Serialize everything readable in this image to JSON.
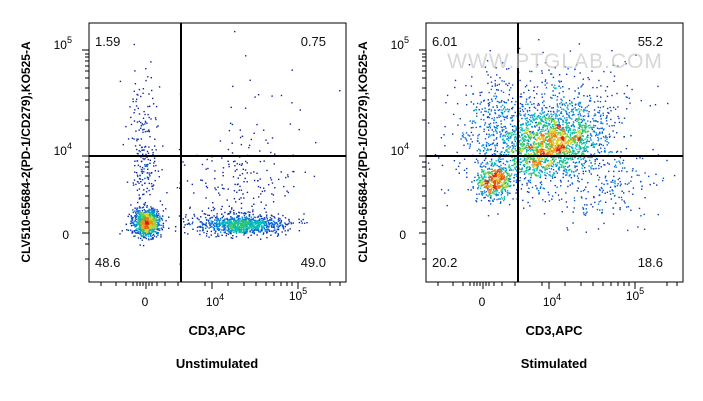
{
  "watermark": "WWW.PTGLAB.COM",
  "chart_data": [
    {
      "type": "scatter",
      "subtype": "flow-cytometry-density-dot-plot",
      "title": "Unstimulated",
      "xlabel": "CD3,APC",
      "ylabel": "CLV510-65684-2(PD-1/CD279),KO525-A",
      "x_scale": "biexponential",
      "y_scale": "biexponential",
      "x_ticks": [
        "0",
        "10^4",
        "10^5"
      ],
      "y_ticks": [
        "0",
        "10^4",
        "10^5"
      ],
      "quadrant_percentages": {
        "upper_left": "1.59",
        "upper_right": "0.75",
        "lower_left": "48.6",
        "lower_right": "49.0"
      },
      "populations": [
        {
          "label": "CD3- PD-1- cluster",
          "x": 0,
          "y": 0
        },
        {
          "label": "CD3+ PD-1- cluster",
          "x": 25000,
          "y": 0
        }
      ],
      "grid": false
    },
    {
      "type": "scatter",
      "subtype": "flow-cytometry-density-dot-plot",
      "title": "Stimulated",
      "xlabel": "CD3,APC",
      "ylabel": "CLV510-65684-2(PD-1/CD279),KO525-A",
      "x_scale": "biexponential",
      "y_scale": "biexponential",
      "x_ticks": [
        "0",
        "10^4",
        "10^5"
      ],
      "y_ticks": [
        "0",
        "10^4",
        "10^5"
      ],
      "quadrant_percentages": {
        "upper_left": "6.01",
        "upper_right": "55.2",
        "lower_left": "20.2",
        "lower_right": "18.6"
      },
      "populations": [
        {
          "label": "CD3- cluster",
          "x": 500,
          "y": 2000
        },
        {
          "label": "CD3+ PD-1+ cluster",
          "x": 12000,
          "y": 12000
        }
      ],
      "grid": false
    }
  ]
}
